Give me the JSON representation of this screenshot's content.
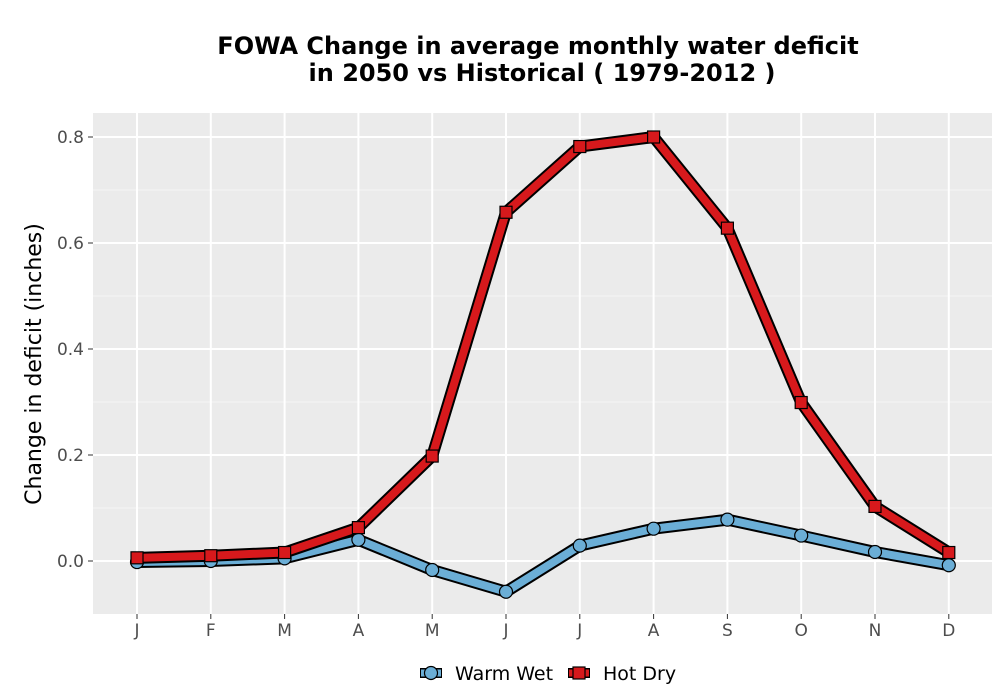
{
  "chart_data": {
    "type": "line",
    "title_lines": [
      "FOWA  Change in average monthly water deficit",
      "in 2050 vs Historical ( 1979-2012 )"
    ],
    "xlabel": "",
    "ylabel": "Change in deficit (inches)",
    "categories": [
      "J",
      "F",
      "M",
      "A",
      "M",
      "J",
      "J",
      "A",
      "S",
      "O",
      "N",
      "D"
    ],
    "y_ticks": [
      0.0,
      0.2,
      0.4,
      0.6,
      0.8
    ],
    "y_tick_labels": [
      "0.0",
      "0.2",
      "0.4",
      "0.6",
      "0.8"
    ],
    "ylim": [
      -0.1,
      0.85
    ],
    "grid": true,
    "legend_position": "bottom",
    "series": [
      {
        "name": "Warm Wet",
        "color": "#6baed6",
        "marker": "circle",
        "values": [
          -0.002,
          0.0,
          0.005,
          0.04,
          -0.017,
          -0.058,
          0.029,
          0.061,
          0.078,
          0.048,
          0.017,
          -0.008
        ]
      },
      {
        "name": "Hot Dry",
        "color": "#d7191c",
        "marker": "square",
        "values": [
          0.006,
          0.01,
          0.016,
          0.063,
          0.198,
          0.658,
          0.782,
          0.8,
          0.628,
          0.299,
          0.103,
          0.016
        ]
      }
    ]
  }
}
